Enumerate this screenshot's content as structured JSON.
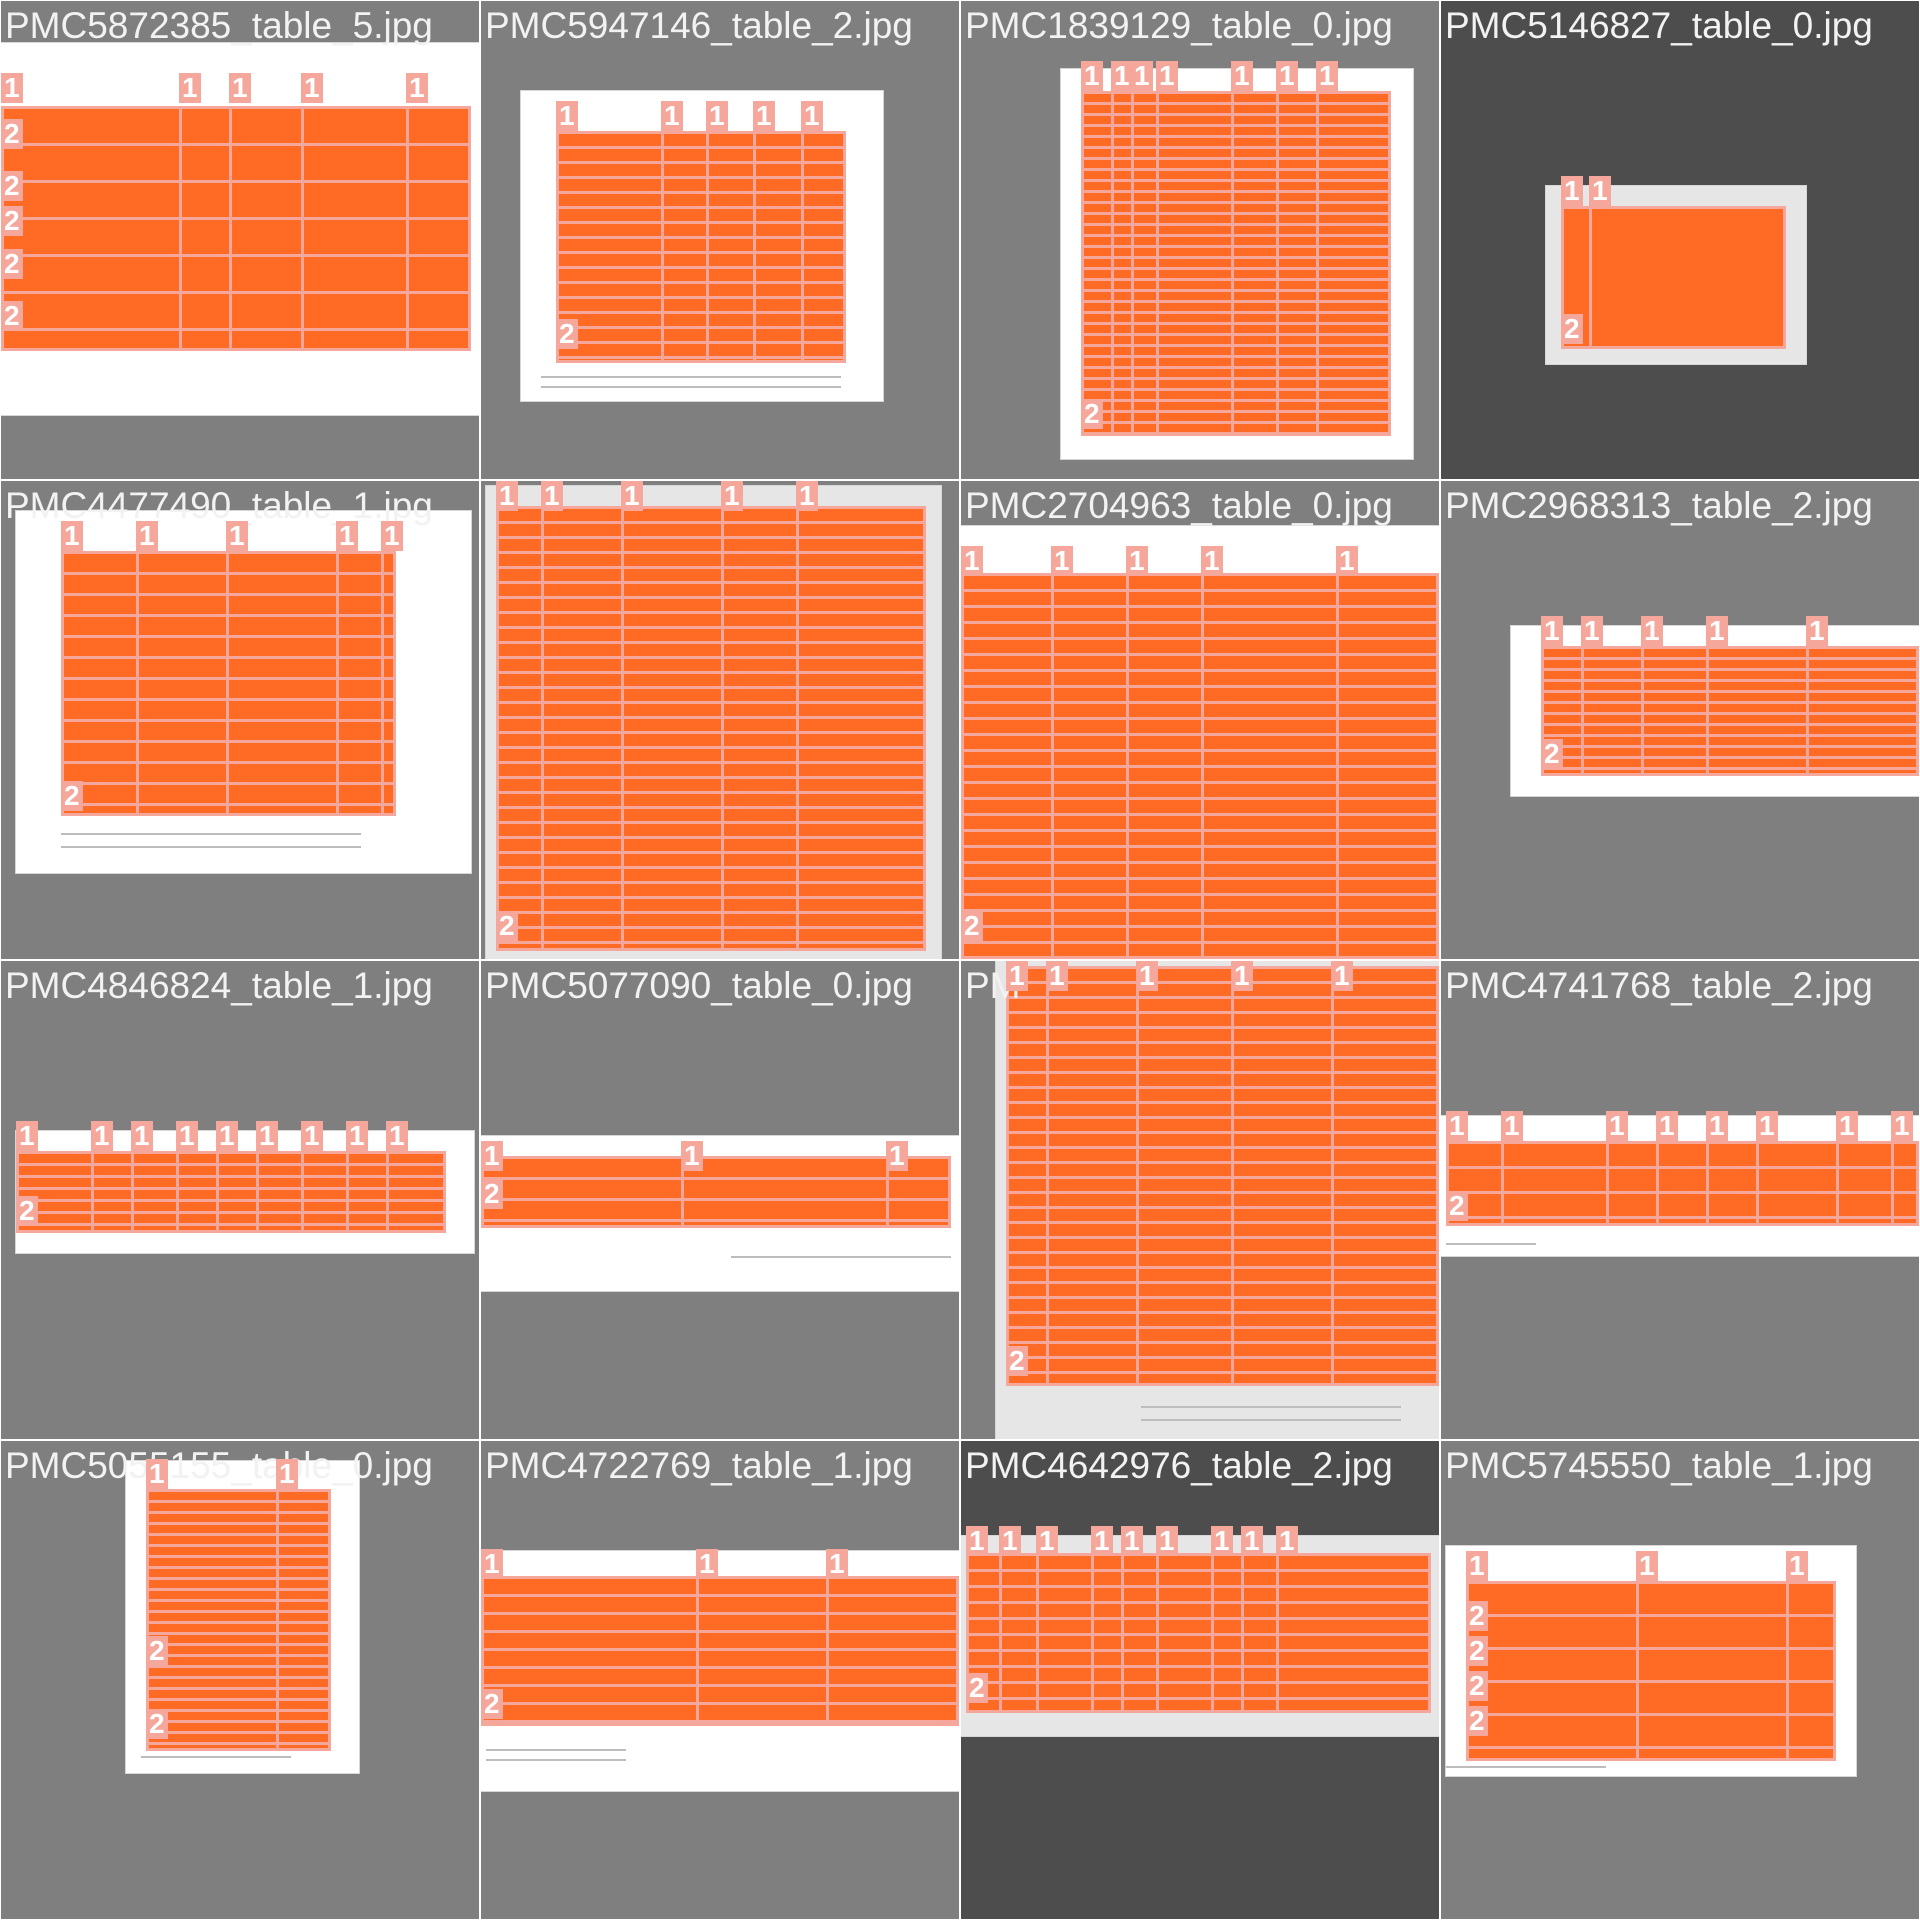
{
  "tiles": [
    {
      "title": "PMC5872385_table_5.jpg",
      "shade": "mid"
    },
    {
      "title": "PMC5947146_table_2.jpg",
      "shade": "mid"
    },
    {
      "title": "PMC1839129_table_0.jpg",
      "shade": "mid"
    },
    {
      "title": "PMC5146827_table_0.jpg",
      "shade": "dark"
    },
    {
      "title": "PMC4477490_table_1.jpg",
      "shade": "mid"
    },
    {
      "title": "",
      "shade": "mid"
    },
    {
      "title": "PMC2704963_table_0.jpg",
      "shade": "mid"
    },
    {
      "title": "PMC2968313_table_2.jpg",
      "shade": "mid"
    },
    {
      "title": "PMC4846824_table_1.jpg",
      "shade": "mid"
    },
    {
      "title": "PMC5077090_table_0.jpg",
      "shade": "mid"
    },
    {
      "title": "PM",
      "shade": "mid"
    },
    {
      "title": "PMC4741768_table_2.jpg",
      "shade": "mid"
    },
    {
      "title": "PMC5055155_table_0.jpg",
      "shade": "mid"
    },
    {
      "title": "PMC4722769_table_1.jpg",
      "shade": "mid"
    },
    {
      "title": "PMC4642976_table_2.jpg",
      "shade": "dark"
    },
    {
      "title": "PMC5745550_table_1.jpg",
      "shade": "mid"
    }
  ],
  "markers": {
    "column": "1",
    "row": "2",
    "row_alt": "2"
  }
}
